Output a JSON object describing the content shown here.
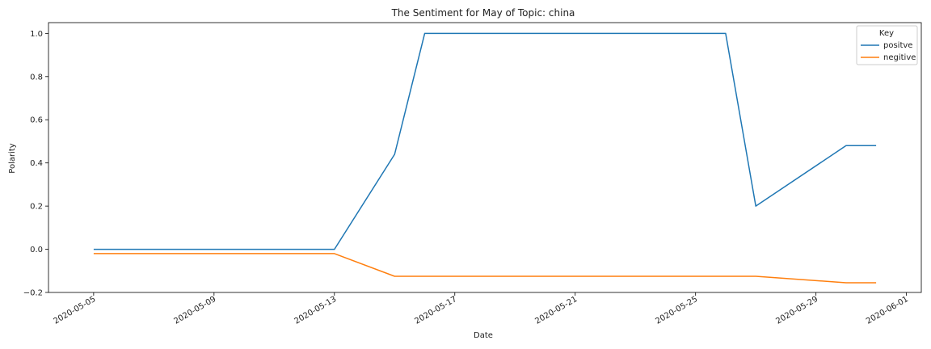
{
  "chart_data": {
    "type": "line",
    "title": "The Sentiment for May of Topic: china",
    "xlabel": "Date",
    "ylabel": "Polarity",
    "xlim": [
      "2020-05-05",
      "2020-06-01"
    ],
    "ylim": [
      -0.2,
      1.05
    ],
    "x_ticks": [
      "2020-05-05",
      "2020-05-09",
      "2020-05-13",
      "2020-05-17",
      "2020-05-21",
      "2020-05-25",
      "2020-05-29",
      "2020-06-01"
    ],
    "y_ticks": [
      "−0.2",
      "0.0",
      "0.2",
      "0.4",
      "0.6",
      "0.8",
      "1.0"
    ],
    "y_tick_values": [
      -0.2,
      0.0,
      0.2,
      0.4,
      0.6,
      0.8,
      1.0
    ],
    "grid": false,
    "legend": {
      "title": "Key",
      "placement": "top-right"
    },
    "series": [
      {
        "name": "positve",
        "color": "#1f77b4",
        "x": [
          "2020-05-05",
          "2020-05-13",
          "2020-05-15",
          "2020-05-16",
          "2020-05-26",
          "2020-05-27",
          "2020-05-30",
          "2020-05-31"
        ],
        "values": [
          0.0,
          0.0,
          0.44,
          1.0,
          1.0,
          0.2,
          0.48,
          0.48
        ]
      },
      {
        "name": "negitive",
        "color": "#ff7f0e",
        "x": [
          "2020-05-05",
          "2020-05-13",
          "2020-05-15",
          "2020-05-27",
          "2020-05-30",
          "2020-05-31"
        ],
        "values": [
          -0.02,
          -0.02,
          -0.125,
          -0.125,
          -0.155,
          -0.155
        ]
      }
    ]
  }
}
